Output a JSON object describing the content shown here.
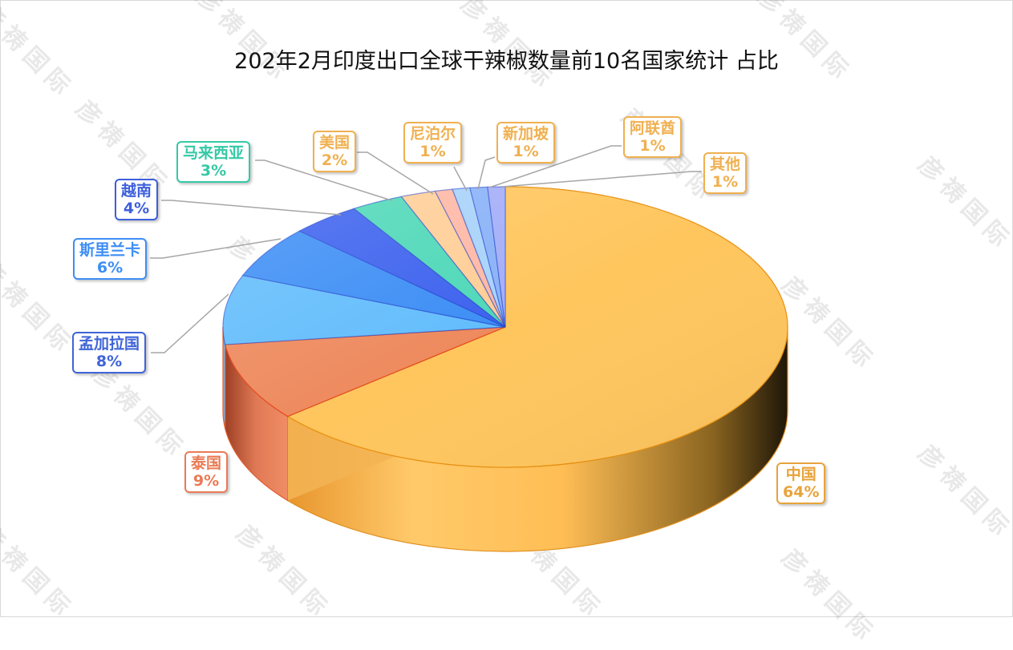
{
  "title": "202年2月印度出口全球干辣椒数量前10名国家统计 占比",
  "watermark": "彦祷国际",
  "chart_data": {
    "type": "pie",
    "title": "202年2月印度出口全球干辣椒数量前10名国家统计 占比",
    "slices": [
      {
        "name": "中国",
        "value": 64,
        "label": "64%",
        "color": "#FFC65E",
        "text_color": "#E8A33B"
      },
      {
        "name": "泰国",
        "value": 9,
        "label": "9%",
        "color": "#EE8A5E",
        "text_color": "#EA7B55"
      },
      {
        "name": "孟加拉国",
        "value": 8,
        "label": "8%",
        "color": "#63BDFC",
        "text_color": "#3F64D8"
      },
      {
        "name": "斯里兰卡",
        "value": 6,
        "label": "6%",
        "color": "#3D8EF5",
        "text_color": "#3D8EF5"
      },
      {
        "name": "越南",
        "value": 4,
        "label": "4%",
        "color": "#3D62EE",
        "text_color": "#3D5FDC"
      },
      {
        "name": "马来西亚",
        "value": 3,
        "label": "3%",
        "color": "#4FD8B8",
        "text_color": "#35C9A6"
      },
      {
        "name": "美国",
        "value": 2,
        "label": "2%",
        "color": "#FFCE97",
        "text_color": "#F0B050"
      },
      {
        "name": "尼泊尔",
        "value": 1,
        "label": "1%",
        "color": "#FFB8A6",
        "text_color": "#F0B050"
      },
      {
        "name": "新加坡",
        "value": 1,
        "label": "1%",
        "color": "#A8D3FA",
        "text_color": "#F0B050"
      },
      {
        "name": "阿联酋",
        "value": 1,
        "label": "1%",
        "color": "#8AB2F8",
        "text_color": "#F0B050"
      },
      {
        "name": "其他",
        "value": 1,
        "label": "1%",
        "color": "#A4AEF7",
        "text_color": "#F0B050"
      }
    ]
  }
}
